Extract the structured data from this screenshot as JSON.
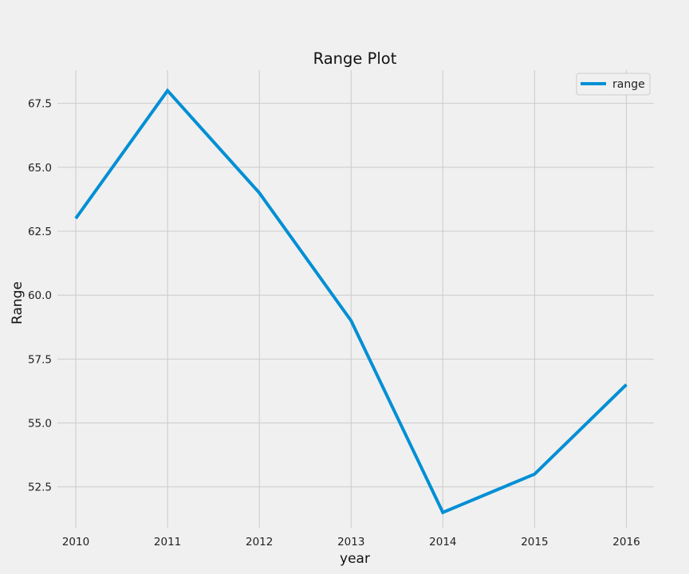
{
  "chart_data": {
    "type": "line",
    "title": "Range Plot",
    "xlabel": "year",
    "ylabel": "Range",
    "x": [
      2010,
      2011,
      2012,
      2013,
      2014,
      2015,
      2016
    ],
    "series": [
      {
        "name": "range",
        "values": [
          63.0,
          68.0,
          64.0,
          59.0,
          51.5,
          53.0,
          56.5
        ]
      }
    ],
    "xlim": [
      2009.8,
      2016.3
    ],
    "ylim": [
      50.9,
      68.8
    ],
    "yticks": [
      52.5,
      55.0,
      57.5,
      60.0,
      62.5,
      65.0,
      67.5
    ],
    "ytick_labels": [
      "52.5",
      "55.0",
      "57.5",
      "60.0",
      "62.5",
      "65.0",
      "67.5"
    ],
    "xticks": [
      2010,
      2011,
      2012,
      2013,
      2014,
      2015,
      2016
    ],
    "xtick_labels": [
      "2010",
      "2011",
      "2012",
      "2013",
      "2014",
      "2015",
      "2016"
    ],
    "grid": true,
    "legend_position": "top-right",
    "colors": {
      "series": "#008fd5",
      "background": "#f0f0f0",
      "grid": "#cbcbcb"
    }
  }
}
